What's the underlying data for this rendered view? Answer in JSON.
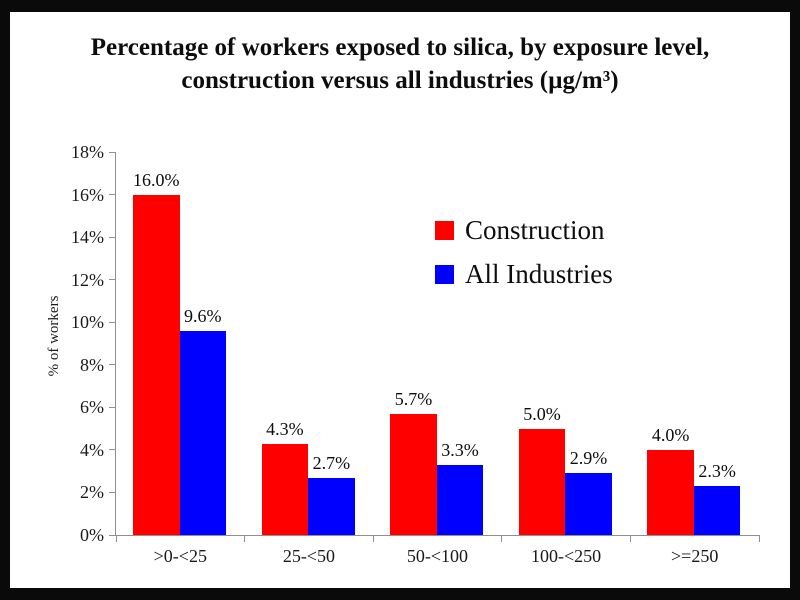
{
  "frame": {
    "background": "#000000",
    "slide_background": "#ffffff"
  },
  "title": {
    "line1": "Percentage of workers exposed to silica, by exposure level,",
    "line2": "construction versus all industries (µg/m³)"
  },
  "chart_data": {
    "type": "bar",
    "title": "Percentage of workers exposed to silica, by exposure level, construction versus all industries (µg/m³)",
    "categories": [
      ">0-<25",
      "25-<50",
      "50-<100",
      "100-<250",
      ">=250"
    ],
    "series": [
      {
        "name": "Construction",
        "color": "#ff0000",
        "values": [
          16.0,
          4.3,
          5.7,
          5.0,
          4.0
        ],
        "labels": [
          "16.0%",
          "4.3%",
          "5.7%",
          "5.0%",
          "4.0%"
        ]
      },
      {
        "name": "All Industries",
        "color": "#0000ff",
        "values": [
          9.6,
          2.7,
          3.3,
          2.9,
          2.3
        ],
        "labels": [
          "9.6%",
          "2.7%",
          "3.3%",
          "2.9%",
          "2.3%"
        ]
      }
    ],
    "xlabel": "",
    "ylabel": "% of workers",
    "ylim": [
      0,
      18
    ],
    "ytick_step": 2,
    "ytick_labels": [
      "0%",
      "2%",
      "4%",
      "6%",
      "8%",
      "10%",
      "12%",
      "14%",
      "16%",
      "18%"
    ],
    "grid": false,
    "legend_position": "upper-right-inside",
    "axis_color": "#8f8f8f"
  }
}
